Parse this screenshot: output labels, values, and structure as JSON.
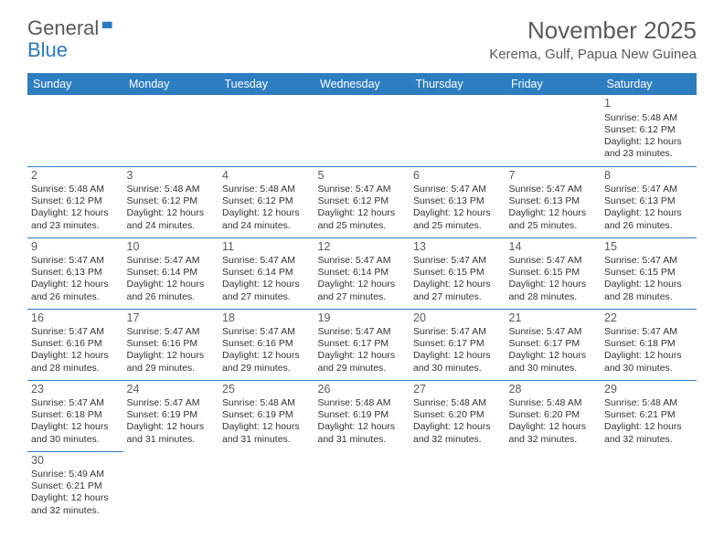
{
  "brand": {
    "part1": "General",
    "part2": "Blue"
  },
  "title": "November 2025",
  "location": "Kerema, Gulf, Papua New Guinea",
  "colors": {
    "header_bg": "#2d7dc1",
    "header_text": "#ffffff",
    "border": "#2d7dc1",
    "text": "#333333",
    "muted": "#5a5a5a",
    "brand_blue": "#2a7ac0"
  },
  "weekdays": [
    "Sunday",
    "Monday",
    "Tuesday",
    "Wednesday",
    "Thursday",
    "Friday",
    "Saturday"
  ],
  "days": {
    "1": {
      "sr": "5:48 AM",
      "ss": "6:12 PM",
      "dl": "12 hours and 23 minutes."
    },
    "2": {
      "sr": "5:48 AM",
      "ss": "6:12 PM",
      "dl": "12 hours and 23 minutes."
    },
    "3": {
      "sr": "5:48 AM",
      "ss": "6:12 PM",
      "dl": "12 hours and 24 minutes."
    },
    "4": {
      "sr": "5:48 AM",
      "ss": "6:12 PM",
      "dl": "12 hours and 24 minutes."
    },
    "5": {
      "sr": "5:47 AM",
      "ss": "6:12 PM",
      "dl": "12 hours and 25 minutes."
    },
    "6": {
      "sr": "5:47 AM",
      "ss": "6:13 PM",
      "dl": "12 hours and 25 minutes."
    },
    "7": {
      "sr": "5:47 AM",
      "ss": "6:13 PM",
      "dl": "12 hours and 25 minutes."
    },
    "8": {
      "sr": "5:47 AM",
      "ss": "6:13 PM",
      "dl": "12 hours and 26 minutes."
    },
    "9": {
      "sr": "5:47 AM",
      "ss": "6:13 PM",
      "dl": "12 hours and 26 minutes."
    },
    "10": {
      "sr": "5:47 AM",
      "ss": "6:14 PM",
      "dl": "12 hours and 26 minutes."
    },
    "11": {
      "sr": "5:47 AM",
      "ss": "6:14 PM",
      "dl": "12 hours and 27 minutes."
    },
    "12": {
      "sr": "5:47 AM",
      "ss": "6:14 PM",
      "dl": "12 hours and 27 minutes."
    },
    "13": {
      "sr": "5:47 AM",
      "ss": "6:15 PM",
      "dl": "12 hours and 27 minutes."
    },
    "14": {
      "sr": "5:47 AM",
      "ss": "6:15 PM",
      "dl": "12 hours and 28 minutes."
    },
    "15": {
      "sr": "5:47 AM",
      "ss": "6:15 PM",
      "dl": "12 hours and 28 minutes."
    },
    "16": {
      "sr": "5:47 AM",
      "ss": "6:16 PM",
      "dl": "12 hours and 28 minutes."
    },
    "17": {
      "sr": "5:47 AM",
      "ss": "6:16 PM",
      "dl": "12 hours and 29 minutes."
    },
    "18": {
      "sr": "5:47 AM",
      "ss": "6:16 PM",
      "dl": "12 hours and 29 minutes."
    },
    "19": {
      "sr": "5:47 AM",
      "ss": "6:17 PM",
      "dl": "12 hours and 29 minutes."
    },
    "20": {
      "sr": "5:47 AM",
      "ss": "6:17 PM",
      "dl": "12 hours and 30 minutes."
    },
    "21": {
      "sr": "5:47 AM",
      "ss": "6:17 PM",
      "dl": "12 hours and 30 minutes."
    },
    "22": {
      "sr": "5:47 AM",
      "ss": "6:18 PM",
      "dl": "12 hours and 30 minutes."
    },
    "23": {
      "sr": "5:47 AM",
      "ss": "6:18 PM",
      "dl": "12 hours and 30 minutes."
    },
    "24": {
      "sr": "5:47 AM",
      "ss": "6:19 PM",
      "dl": "12 hours and 31 minutes."
    },
    "25": {
      "sr": "5:48 AM",
      "ss": "6:19 PM",
      "dl": "12 hours and 31 minutes."
    },
    "26": {
      "sr": "5:48 AM",
      "ss": "6:19 PM",
      "dl": "12 hours and 31 minutes."
    },
    "27": {
      "sr": "5:48 AM",
      "ss": "6:20 PM",
      "dl": "12 hours and 32 minutes."
    },
    "28": {
      "sr": "5:48 AM",
      "ss": "6:20 PM",
      "dl": "12 hours and 32 minutes."
    },
    "29": {
      "sr": "5:48 AM",
      "ss": "6:21 PM",
      "dl": "12 hours and 32 minutes."
    },
    "30": {
      "sr": "5:49 AM",
      "ss": "6:21 PM",
      "dl": "12 hours and 32 minutes."
    }
  },
  "labels": {
    "sunrise": "Sunrise: ",
    "sunset": "Sunset: ",
    "daylight": "Daylight: "
  },
  "layout": [
    [
      null,
      null,
      null,
      null,
      null,
      null,
      "1"
    ],
    [
      "2",
      "3",
      "4",
      "5",
      "6",
      "7",
      "8"
    ],
    [
      "9",
      "10",
      "11",
      "12",
      "13",
      "14",
      "15"
    ],
    [
      "16",
      "17",
      "18",
      "19",
      "20",
      "21",
      "22"
    ],
    [
      "23",
      "24",
      "25",
      "26",
      "27",
      "28",
      "29"
    ],
    [
      "30",
      null,
      null,
      null,
      null,
      null,
      null
    ]
  ]
}
